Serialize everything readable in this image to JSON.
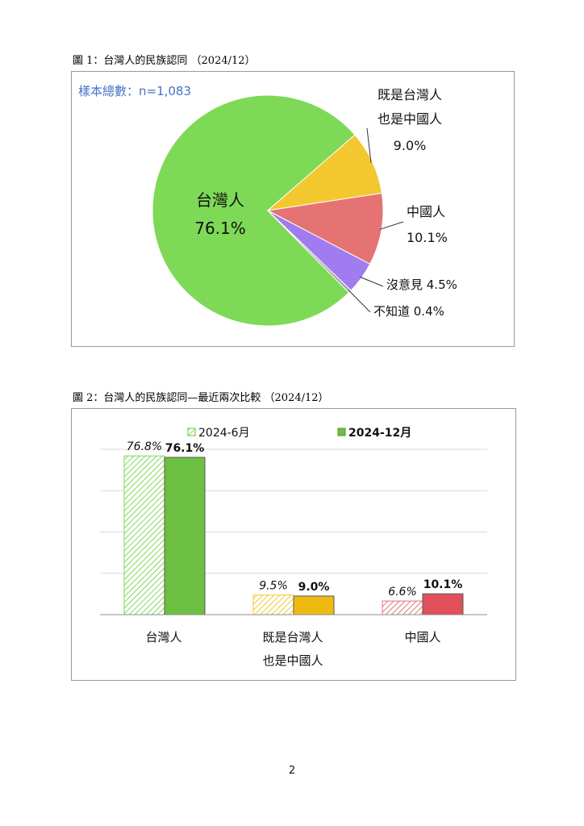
{
  "page_number": "2",
  "figure1": {
    "title": "圖 1：台灣人的民族認同 （2024/12）",
    "sample_label": "樣本總數：n=1,083"
  },
  "figure2": {
    "title": "圖 2：台灣人的民族認同—最近兩次比較 （2024/12）",
    "category_label_lines": [
      [
        "台灣人"
      ],
      [
        "既是台灣人",
        "也是中國人"
      ],
      [
        "中國人"
      ]
    ]
  },
  "chart_data": [
    {
      "type": "pie",
      "slices": [
        {
          "label": "台灣人",
          "value": 76.1,
          "value_label": "76.1%",
          "color": "#7ed957"
        },
        {
          "label": "既是台灣人也是中國人",
          "label_lines": [
            "既是台灣人",
            "也是中國人"
          ],
          "value": 9.0,
          "value_label": "9.0%",
          "color": "#f3c82e"
        },
        {
          "label": "中國人",
          "value": 10.1,
          "value_label": "10.1%",
          "color": "#e57373"
        },
        {
          "label": "沒意見",
          "value": 4.5,
          "value_label": "沒意見 4.5%",
          "color": "#a07cf0"
        },
        {
          "label": "不知道",
          "value": 0.4,
          "value_label": "不知道 0.4%",
          "color": "#9e9e9e"
        }
      ]
    },
    {
      "type": "bar",
      "categories": [
        "台灣人",
        "既是台灣人也是中國人",
        "中國人"
      ],
      "ylim": [
        0,
        80
      ],
      "grid": true,
      "legend_position": "top",
      "series": [
        {
          "name": "2024-6月",
          "values": [
            76.8,
            9.5,
            6.6
          ],
          "value_labels": [
            "76.8%",
            "9.5%",
            "6.6%"
          ],
          "style": "hatched",
          "colors": [
            "#7ed957",
            "#f3c82e",
            "#e57373"
          ]
        },
        {
          "name": "2024-12月",
          "values": [
            76.1,
            9.0,
            10.1
          ],
          "value_labels": [
            "76.1%",
            "9.0%",
            "10.1%"
          ],
          "style": "solid",
          "colors": [
            "#6cbf40",
            "#eeba12",
            "#e04f5a"
          ]
        }
      ]
    }
  ]
}
